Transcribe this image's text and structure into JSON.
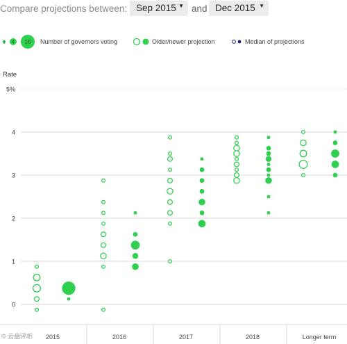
{
  "header": {
    "compare_label": "Compare projections between:",
    "from_value": "Sep 2015",
    "and_label": "and",
    "to_value": "Dec 2015"
  },
  "legend": {
    "size_examples": [
      "1",
      "4",
      "16"
    ],
    "size_text": "Number of governors voting",
    "projection_text": "Older/newer projection",
    "median_text": "Median of projections"
  },
  "axis": {
    "y_title": "Rate",
    "y_ticks": [
      "0",
      "1",
      "2",
      "3",
      "4",
      "5%"
    ]
  },
  "watermark": "© 云盘评析",
  "colors": {
    "accent": "#2fd050",
    "median": "#1a237e",
    "grid": "#d8d8d8"
  },
  "chart_data": {
    "type": "scatter",
    "ylabel": "Rate",
    "ylim": [
      0,
      5
    ],
    "categories": [
      "2015",
      "2016",
      "2017",
      "2018",
      "Longer term"
    ],
    "series": [
      {
        "name": "Older projection",
        "style": "hollow",
        "points": [
          {
            "cat": "2015",
            "y": 0.875,
            "n": 1
          },
          {
            "cat": "2015",
            "y": 0.625,
            "n": 4
          },
          {
            "cat": "2015",
            "y": 0.375,
            "n": 5
          },
          {
            "cat": "2015",
            "y": 0.125,
            "n": 2
          },
          {
            "cat": "2015",
            "y": -0.125,
            "n": 1
          },
          {
            "cat": "2016",
            "y": 2.875,
            "n": 1
          },
          {
            "cat": "2016",
            "y": 2.375,
            "n": 1
          },
          {
            "cat": "2016",
            "y": 2.125,
            "n": 1
          },
          {
            "cat": "2016",
            "y": 1.875,
            "n": 1
          },
          {
            "cat": "2016",
            "y": 1.625,
            "n": 2
          },
          {
            "cat": "2016",
            "y": 1.375,
            "n": 2
          },
          {
            "cat": "2016",
            "y": 1.125,
            "n": 3
          },
          {
            "cat": "2016",
            "y": 0.875,
            "n": 1
          },
          {
            "cat": "2016",
            "y": -0.125,
            "n": 1
          },
          {
            "cat": "2017",
            "y": 3.875,
            "n": 1
          },
          {
            "cat": "2017",
            "y": 3.5,
            "n": 1
          },
          {
            "cat": "2017",
            "y": 3.375,
            "n": 2
          },
          {
            "cat": "2017",
            "y": 3.125,
            "n": 1
          },
          {
            "cat": "2017",
            "y": 2.875,
            "n": 2
          },
          {
            "cat": "2017",
            "y": 2.625,
            "n": 3
          },
          {
            "cat": "2017",
            "y": 2.375,
            "n": 2
          },
          {
            "cat": "2017",
            "y": 2.125,
            "n": 2
          },
          {
            "cat": "2017",
            "y": 1.875,
            "n": 1
          },
          {
            "cat": "2017",
            "y": 1.0,
            "n": 1
          },
          {
            "cat": "2018",
            "y": 3.875,
            "n": 1
          },
          {
            "cat": "2018",
            "y": 3.75,
            "n": 1
          },
          {
            "cat": "2018",
            "y": 3.625,
            "n": 3
          },
          {
            "cat": "2018",
            "y": 3.5,
            "n": 3
          },
          {
            "cat": "2018",
            "y": 3.375,
            "n": 1
          },
          {
            "cat": "2018",
            "y": 3.25,
            "n": 2
          },
          {
            "cat": "2018",
            "y": 3.125,
            "n": 1
          },
          {
            "cat": "2018",
            "y": 3.0,
            "n": 2
          },
          {
            "cat": "2018",
            "y": 2.875,
            "n": 3
          },
          {
            "cat": "Longer term",
            "y": 4.0,
            "n": 1
          },
          {
            "cat": "Longer term",
            "y": 3.75,
            "n": 3
          },
          {
            "cat": "Longer term",
            "y": 3.5,
            "n": 4
          },
          {
            "cat": "Longer term",
            "y": 3.25,
            "n": 6
          },
          {
            "cat": "Longer term",
            "y": 3.0,
            "n": 1
          }
        ]
      },
      {
        "name": "Newer projection",
        "style": "filled",
        "points": [
          {
            "cat": "2015",
            "y": 0.375,
            "n": 16
          },
          {
            "cat": "2015",
            "y": 0.125,
            "n": 1
          },
          {
            "cat": "2016",
            "y": 2.125,
            "n": 1
          },
          {
            "cat": "2016",
            "y": 1.625,
            "n": 2
          },
          {
            "cat": "2016",
            "y": 1.375,
            "n": 7
          },
          {
            "cat": "2016",
            "y": 1.125,
            "n": 3
          },
          {
            "cat": "2016",
            "y": 0.875,
            "n": 4
          },
          {
            "cat": "2017",
            "y": 3.375,
            "n": 1
          },
          {
            "cat": "2017",
            "y": 3.125,
            "n": 2
          },
          {
            "cat": "2017",
            "y": 2.875,
            "n": 2
          },
          {
            "cat": "2017",
            "y": 2.625,
            "n": 2
          },
          {
            "cat": "2017",
            "y": 2.375,
            "n": 4
          },
          {
            "cat": "2017",
            "y": 2.125,
            "n": 2
          },
          {
            "cat": "2017",
            "y": 1.875,
            "n": 5
          },
          {
            "cat": "2018",
            "y": 3.875,
            "n": 1
          },
          {
            "cat": "2018",
            "y": 3.625,
            "n": 2
          },
          {
            "cat": "2018",
            "y": 3.5,
            "n": 2
          },
          {
            "cat": "2018",
            "y": 3.375,
            "n": 3
          },
          {
            "cat": "2018",
            "y": 3.25,
            "n": 1
          },
          {
            "cat": "2018",
            "y": 3.125,
            "n": 2
          },
          {
            "cat": "2018",
            "y": 3.0,
            "n": 1
          },
          {
            "cat": "2018",
            "y": 2.875,
            "n": 4
          },
          {
            "cat": "2018",
            "y": 2.5,
            "n": 1
          },
          {
            "cat": "2018",
            "y": 2.125,
            "n": 1
          },
          {
            "cat": "Longer term",
            "y": 4.0,
            "n": 1
          },
          {
            "cat": "Longer term",
            "y": 3.75,
            "n": 2
          },
          {
            "cat": "Longer term",
            "y": 3.5,
            "n": 6
          },
          {
            "cat": "Longer term",
            "y": 3.25,
            "n": 5
          },
          {
            "cat": "Longer term",
            "y": 3.0,
            "n": 2
          }
        ]
      }
    ],
    "legend": "top"
  }
}
